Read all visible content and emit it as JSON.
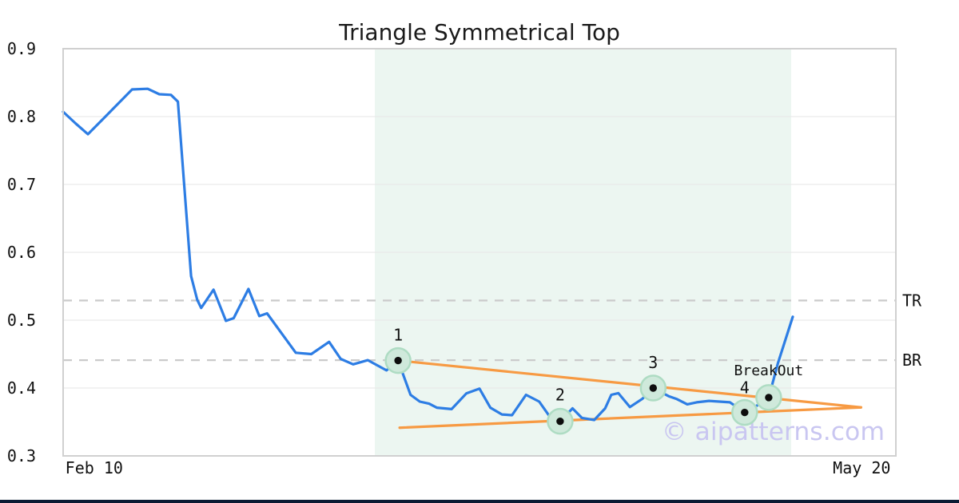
{
  "title": "Triangle Symmetrical Top",
  "watermark": {
    "text": "© aipatterns.com",
    "color": "#c9c6f1"
  },
  "footer": {
    "color": "#0a1a33"
  },
  "chart_data": {
    "type": "line",
    "title": "Triangle Symmetrical Top",
    "x_axis": {
      "unit": "days",
      "domain": [
        0,
        107.4
      ],
      "ticks": [
        {
          "day": 4,
          "label": "Feb 10"
        },
        {
          "day": 103,
          "label": "May 20"
        }
      ]
    },
    "y_axis": {
      "domain": [
        0.3,
        0.9
      ],
      "tick_labels": [
        "0.3",
        "0.4",
        "0.5",
        "0.6",
        "0.7",
        "0.8",
        "0.9"
      ],
      "grid_values": [
        0.4,
        0.5,
        0.6,
        0.7,
        0.8
      ]
    },
    "series": [
      {
        "name": "price",
        "color": "#2d7de4",
        "points": [
          [
            0,
            0.807
          ],
          [
            1.6,
            0.79
          ],
          [
            3.2,
            0.774
          ],
          [
            4.8,
            0.7925
          ],
          [
            6.4,
            0.811
          ],
          [
            8,
            0.8295
          ],
          [
            8.9,
            0.84
          ],
          [
            10.9,
            0.841
          ],
          [
            12.4,
            0.833
          ],
          [
            13.9,
            0.832
          ],
          [
            14.8,
            0.822
          ],
          [
            16.5,
            0.565
          ],
          [
            17.3,
            0.53
          ],
          [
            17.8,
            0.518
          ],
          [
            19.4,
            0.545
          ],
          [
            21,
            0.499
          ],
          [
            22,
            0.503
          ],
          [
            23.9,
            0.546
          ],
          [
            25.3,
            0.506
          ],
          [
            26.3,
            0.51
          ],
          [
            30,
            0.452
          ],
          [
            32,
            0.45
          ],
          [
            34.3,
            0.468
          ],
          [
            35.8,
            0.443
          ],
          [
            37.4,
            0.435
          ],
          [
            39.3,
            0.441
          ],
          [
            41.7,
            0.426
          ],
          [
            43.2,
            0.4405
          ],
          [
            44.8,
            0.39
          ],
          [
            46,
            0.38
          ],
          [
            47.2,
            0.377
          ],
          [
            48.2,
            0.371
          ],
          [
            50.1,
            0.369
          ],
          [
            52,
            0.392
          ],
          [
            53.7,
            0.399
          ],
          [
            55.1,
            0.371
          ],
          [
            56.6,
            0.361
          ],
          [
            57.9,
            0.36
          ],
          [
            59.7,
            0.39
          ],
          [
            61.4,
            0.38
          ],
          [
            62.7,
            0.359
          ],
          [
            64.1,
            0.351
          ],
          [
            65.7,
            0.37
          ],
          [
            66.9,
            0.356
          ],
          [
            68.5,
            0.353
          ],
          [
            69.9,
            0.37
          ],
          [
            70.7,
            0.39
          ],
          [
            71.6,
            0.3925
          ],
          [
            73.1,
            0.372
          ],
          [
            74.7,
            0.384
          ],
          [
            76.1,
            0.4
          ],
          [
            78.1,
            0.388
          ],
          [
            79.1,
            0.384
          ],
          [
            80.5,
            0.376
          ],
          [
            81.7,
            0.379
          ],
          [
            83.3,
            0.381
          ],
          [
            86,
            0.379
          ],
          [
            87.9,
            0.364
          ],
          [
            89.6,
            0.375
          ],
          [
            91,
            0.386
          ],
          [
            92.2,
            0.437
          ],
          [
            94.1,
            0.505
          ]
        ]
      }
    ],
    "levels": [
      {
        "label": "TR",
        "value": 0.529
      },
      {
        "label": "BR",
        "value": 0.441
      }
    ],
    "trendlines": {
      "color": "#f79a43",
      "upper": [
        [
          43.2,
          0.4405
        ],
        [
          102.9,
          0.3715
        ]
      ],
      "lower": [
        [
          43.4,
          0.3415
        ],
        [
          102.9,
          0.3715
        ]
      ]
    },
    "pattern_zone": {
      "from_day": 40.2,
      "to_day": 93.9,
      "color": "#ecf6f1"
    },
    "annotations": [
      {
        "label": "1",
        "day": 43.2,
        "value": 0.4405,
        "dy": -25
      },
      {
        "label": "2",
        "day": 64.1,
        "value": 0.351,
        "dy": -26
      },
      {
        "label": "3",
        "day": 76.1,
        "value": 0.4,
        "dy": -25
      },
      {
        "label": "4",
        "day": 87.9,
        "value": 0.364,
        "dy": -24
      },
      {
        "label": "BreakOut",
        "day": 91.0,
        "value": 0.386,
        "dy": -28
      }
    ],
    "marker": {
      "fill": "#cfe9db",
      "ring": "#aedcc3",
      "dot": "#0d0d0d"
    },
    "colors": {
      "grid": "#e9e9e9",
      "level": "#cbcbcb",
      "border": "#d0d0d0",
      "text": "#111111"
    }
  }
}
